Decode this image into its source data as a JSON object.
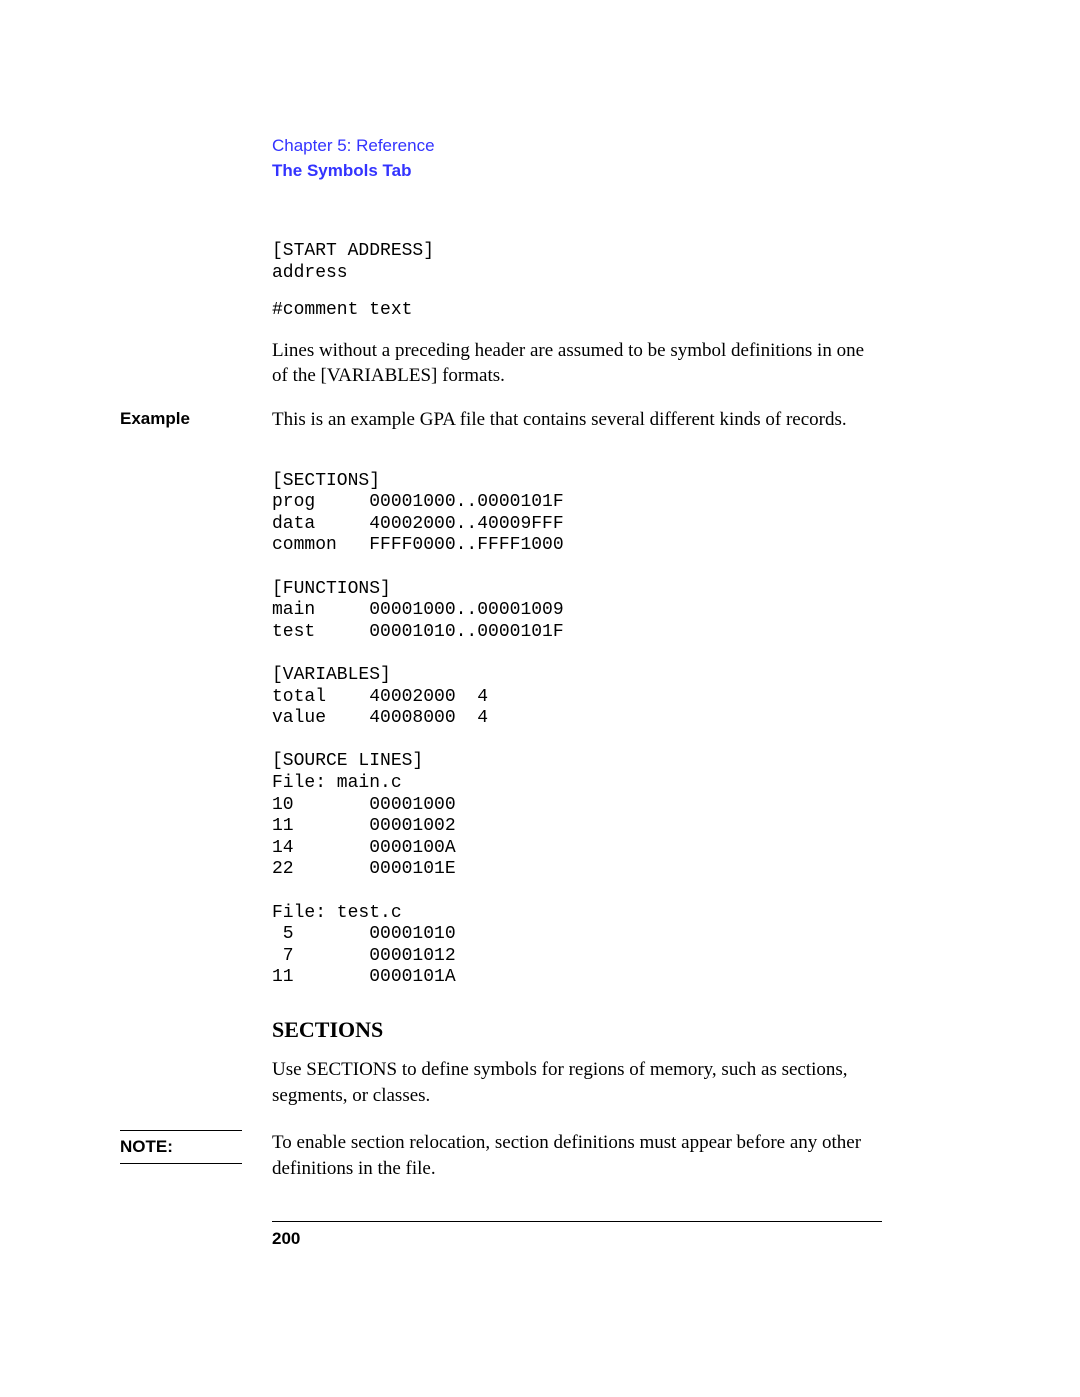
{
  "header": {
    "chapter": "Chapter 5: Reference",
    "section": "The Symbols Tab",
    "chapter_color": "#3333ff"
  },
  "intro": {
    "start_address": "[START ADDRESS]\naddress",
    "comment": "#comment text",
    "lines_text": "Lines without a preceding header are assumed to be symbol definitions in one of the [VARIABLES] formats."
  },
  "example": {
    "label": "Example",
    "intro": "This is an example GPA file that contains several different kinds of records.",
    "listing": "[SECTIONS]\nprog     00001000..0000101F\ndata     40002000..40009FFF\ncommon   FFFF0000..FFFF1000\n\n[FUNCTIONS]\nmain     00001000..00001009\ntest     00001010..0000101F\n\n[VARIABLES]\ntotal    40002000  4\nvalue    40008000  4\n\n[SOURCE LINES]\nFile: main.c\n10       00001000\n11       00001002\n14       0000100A\n22       0000101E\n\nFile: test.c\n 5       00001010\n 7       00001012\n11       0000101A"
  },
  "sections": {
    "heading": "SECTIONS",
    "body": "Use SECTIONS to define symbols for regions of memory, such as sections, segments, or classes."
  },
  "note": {
    "label": "NOTE:",
    "body": "To enable section relocation, section definitions must appear before any other definitions in the file."
  },
  "footer": {
    "page_number": "200"
  }
}
